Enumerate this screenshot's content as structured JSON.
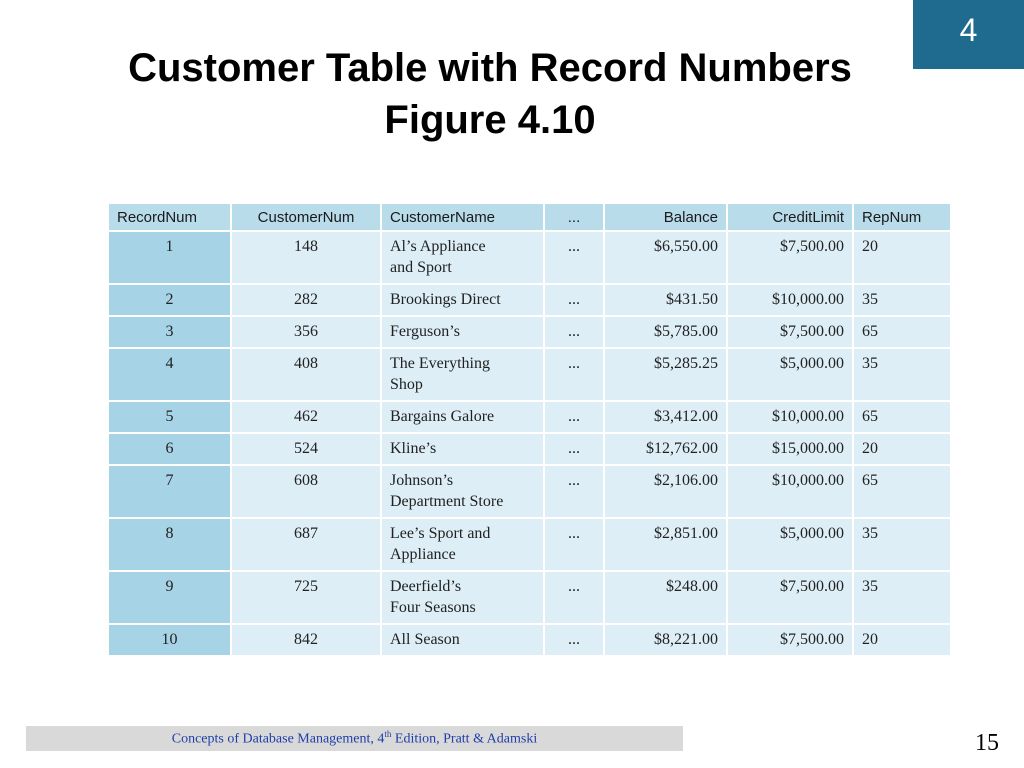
{
  "chapter_badge": "4",
  "title": {
    "line1": "Customer Table with Record Numbers",
    "line2": "Figure 4.10"
  },
  "table": {
    "headers": [
      "RecordNum",
      "CustomerNum",
      "CustomerName",
      "...",
      "Balance",
      "CreditLimit",
      "RepNum"
    ],
    "rows": [
      {
        "record": "1",
        "customer_num": "148",
        "name1": "Al’s Appliance",
        "name2": "and Sport",
        "ellipsis": "...",
        "balance": "$6,550.00",
        "credit": "$7,500.00",
        "rep": "20"
      },
      {
        "record": "2",
        "customer_num": "282",
        "name1": "Brookings Direct",
        "name2": "",
        "ellipsis": "...",
        "balance": "$431.50",
        "credit": "$10,000.00",
        "rep": "35"
      },
      {
        "record": "3",
        "customer_num": "356",
        "name1": "Ferguson’s",
        "name2": "",
        "ellipsis": "...",
        "balance": "$5,785.00",
        "credit": "$7,500.00",
        "rep": "65"
      },
      {
        "record": "4",
        "customer_num": "408",
        "name1": "The Everything",
        "name2": "Shop",
        "ellipsis": "...",
        "balance": "$5,285.25",
        "credit": "$5,000.00",
        "rep": "35"
      },
      {
        "record": "5",
        "customer_num": "462",
        "name1": "Bargains Galore",
        "name2": "",
        "ellipsis": "...",
        "balance": "$3,412.00",
        "credit": "$10,000.00",
        "rep": "65"
      },
      {
        "record": "6",
        "customer_num": "524",
        "name1": "Kline’s",
        "name2": "",
        "ellipsis": "...",
        "balance": "$12,762.00",
        "credit": "$15,000.00",
        "rep": "20"
      },
      {
        "record": "7",
        "customer_num": "608",
        "name1": "Johnson’s",
        "name2": "Department Store",
        "ellipsis": "...",
        "balance": "$2,106.00",
        "credit": "$10,000.00",
        "rep": "65"
      },
      {
        "record": "8",
        "customer_num": "687",
        "name1": "Lee’s Sport and",
        "name2": "Appliance",
        "ellipsis": "...",
        "balance": "$2,851.00",
        "credit": "$5,000.00",
        "rep": "35"
      },
      {
        "record": "9",
        "customer_num": "725",
        "name1": "Deerfield’s",
        "name2": "Four Seasons",
        "ellipsis": "...",
        "balance": "$248.00",
        "credit": "$7,500.00",
        "rep": "35"
      },
      {
        "record": "10",
        "customer_num": "842",
        "name1": "All Season",
        "name2": "",
        "ellipsis": "...",
        "balance": "$8,221.00",
        "credit": "$7,500.00",
        "rep": "20"
      }
    ]
  },
  "footer": {
    "text_before": "Concepts of Database Management, 4",
    "superscript": "th",
    "text_after": " Edition, Pratt & Adamski",
    "page_number": "15"
  }
}
